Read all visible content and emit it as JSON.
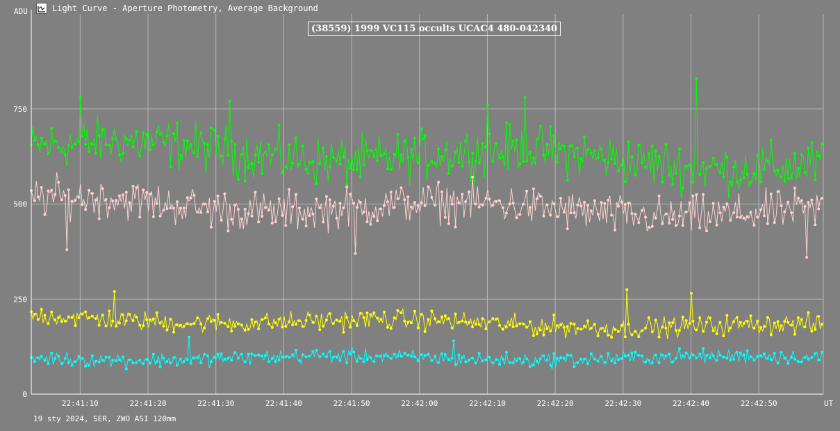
{
  "window": {
    "title": "Light Curve - Aperture Photometry, Average Background",
    "icon": "light-curve-app-icon"
  },
  "footer": {
    "info": "19 sty 2024, SER, ZWO ASI 120mm"
  },
  "chart_data": {
    "type": "line",
    "title": "(38559) 1999 VC115 occults UCAC4 480-042340",
    "ylabel": "ADU",
    "xlabel": "UT",
    "ylim": [
      0,
      1000
    ],
    "yticks": [
      0,
      250,
      500,
      750
    ],
    "xlim": [
      "22:41:02.8",
      "22:42:59.5"
    ],
    "xticks": [
      "22:41:10",
      "22:41:20",
      "22:41:30",
      "22:41:40",
      "22:41:50",
      "22:42:00",
      "22:42:10",
      "22:42:20",
      "22:42:30",
      "22:42:40",
      "22:42:50"
    ],
    "grid": true,
    "markers": true,
    "sample_interval_s": 0.25,
    "series": [
      {
        "color": "#00ff00",
        "mean": 650,
        "noise": 55,
        "trend": -45,
        "spikes": [
          [
            "22:41:10.0",
            780
          ],
          [
            "22:41:32.0",
            770
          ],
          [
            "22:42:10.0",
            760
          ],
          [
            "22:42:15.5",
            780
          ],
          [
            "22:42:40.7",
            830
          ]
        ]
      },
      {
        "color": "#ffd0d0",
        "mean": 505,
        "noise": 45,
        "trend": -30,
        "dips": [
          [
            "22:41:08.0",
            380
          ],
          [
            "22:41:50.5",
            370
          ],
          [
            "22:42:57.0",
            360
          ]
        ]
      },
      {
        "color": "#ffff00",
        "mean": 200,
        "noise": 22,
        "trend": -25,
        "spikes": [
          [
            "22:41:15.0",
            270
          ],
          [
            "22:42:30.5",
            275
          ],
          [
            "22:42:40.0",
            265
          ]
        ]
      },
      {
        "color": "#00ffff",
        "mean": 95,
        "noise": 16,
        "trend": 0,
        "spikes": [
          [
            "22:41:26.0",
            150
          ],
          [
            "22:42:05.0",
            140
          ]
        ]
      }
    ],
    "colors": {
      "background": "#808080",
      "grid": "#b8b8b8",
      "axis": "#ffffff"
    }
  }
}
